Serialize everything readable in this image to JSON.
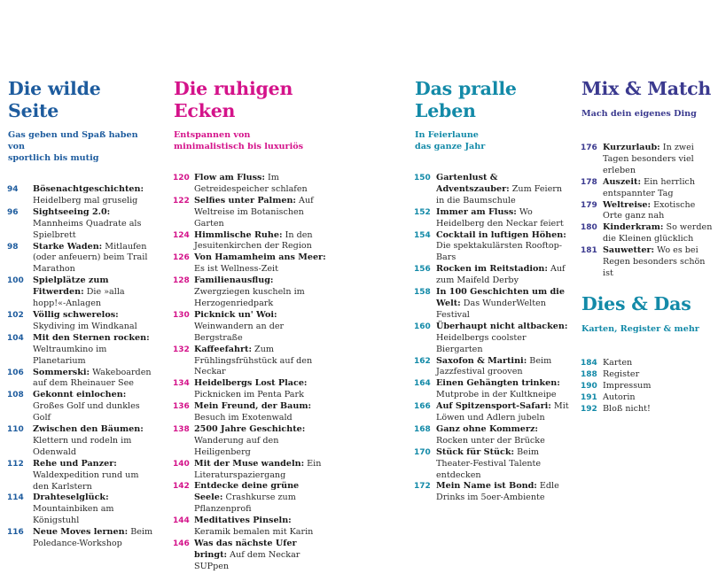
{
  "colors": {
    "blue": "#1e5c9e",
    "pink": "#d4138a",
    "teal": "#138aa8",
    "purple": "#3b3a8f"
  },
  "sections": [
    {
      "title_line1": "Die wilde",
      "title_line2": "Seite",
      "subtitle_line1": "Gas geben und Spaß haben von",
      "subtitle_line2": "sportlich bis mutig",
      "items": [
        {
          "page": "94",
          "title": "Bösenachtgeschichten:",
          "desc": "Heidelberg mal gruselig"
        },
        {
          "page": "96",
          "title": "Sightseeing 2.0:",
          "desc": "Mannheims Quadrate als Spielbrett"
        },
        {
          "page": "98",
          "title": "Starke Waden:",
          "desc": "Mitlaufen (oder anfeuern) beim Trail Marathon"
        },
        {
          "page": "100",
          "title": "Spielplätze zum Fitwerden:",
          "desc": "Die »alla hopp!«-Anlagen"
        },
        {
          "page": "102",
          "title": "Völlig schwerelos:",
          "desc": "Skydiving im Windkanal"
        },
        {
          "page": "104",
          "title": "Mit den Sternen rocken:",
          "desc": "Weltraumkino im Planetarium"
        },
        {
          "page": "106",
          "title": "Sommerski:",
          "desc": "Wakeboarden auf dem Rheinauer See"
        },
        {
          "page": "108",
          "title": "Gekonnt einlochen:",
          "desc": "Großes Golf und dunkles Golf"
        },
        {
          "page": "110",
          "title": "Zwischen den Bäumen:",
          "desc": "Klettern und rodeln im Odenwald"
        },
        {
          "page": "112",
          "title": "Rehe und Panzer:",
          "desc": "Waldexpedition rund um den Karlstern"
        },
        {
          "page": "114",
          "title": "Drahteselglück:",
          "desc": "Mountainbiken am Königstuhl"
        },
        {
          "page": "116",
          "title": "Neue Moves lernen:",
          "desc": "Beim Poledance-Workshop"
        }
      ]
    },
    {
      "title_line1": "Die ruhigen",
      "title_line2": "Ecken",
      "subtitle_line1": "Entspannen von",
      "subtitle_line2": "minimalistisch bis luxuriös",
      "items": [
        {
          "page": "120",
          "title": "Flow am Fluss:",
          "desc": "Im Getreidespeicher schlafen"
        },
        {
          "page": "122",
          "title": "Selfies unter Palmen:",
          "desc": "Auf Weltreise im Botanischen Garten"
        },
        {
          "page": "124",
          "title": "Himmlische Ruhe:",
          "desc": "In den Jesuitenkirchen der Region"
        },
        {
          "page": "126",
          "title": "Von Hamamheim ans Meer:",
          "desc": "Es ist Wellness-Zeit"
        },
        {
          "page": "128",
          "title": "Familienausflug:",
          "desc": "Zwergziegen kuscheln im Herzogenriedpark"
        },
        {
          "page": "130",
          "title": "Picknick un' Woi:",
          "desc": "Weinwandern an der Bergstraße"
        },
        {
          "page": "132",
          "title": "Kaffeefahrt:",
          "desc": "Zum Frühlingsfrühstück auf den Neckar"
        },
        {
          "page": "134",
          "title": "Heidelbergs Lost Place:",
          "desc": "Picknicken im Penta Park"
        },
        {
          "page": "136",
          "title": "Mein Freund, der Baum:",
          "desc": "Besuch im Exotenwald"
        },
        {
          "page": "138",
          "title": "2500 Jahre Geschichte:",
          "desc": "Wanderung auf den Heiligenberg"
        },
        {
          "page": "140",
          "title": "Mit der Muse wandeln:",
          "desc": "Ein Literaturspaziergang"
        },
        {
          "page": "142",
          "title": "Entdecke deine grüne Seele:",
          "desc": "Crashkurse zum Pflanzenprofi"
        },
        {
          "page": "144",
          "title": "Meditatives Pinseln:",
          "desc": "Keramik bemalen mit Karin"
        },
        {
          "page": "146",
          "title": "Was das nächste Ufer bringt:",
          "desc": "Auf dem Neckar SUPpen"
        }
      ]
    },
    {
      "title_line1": "Das pralle",
      "title_line2": "Leben",
      "subtitle_line1": "In Feierlaune",
      "subtitle_line2": "das ganze Jahr",
      "items": [
        {
          "page": "150",
          "title": "Gartenlust & Adventszauber:",
          "desc": "Zum Feiern in die Baumschule"
        },
        {
          "page": "152",
          "title": "Immer am Fluss:",
          "desc": "Wo Heidelberg den Neckar feiert"
        },
        {
          "page": "154",
          "title": "Cocktail in luftigen Höhen:",
          "desc": "Die spektakulärsten Rooftop-Bars"
        },
        {
          "page": "156",
          "title": "Rocken im Reitstadion:",
          "desc": "Auf zum Maifeld Derby"
        },
        {
          "page": "158",
          "title": "In 100 Geschichten um die Welt:",
          "desc": "Das WunderWelten Festival"
        },
        {
          "page": "160",
          "title": "Überhaupt nicht altbacken:",
          "desc": "Heidelbergs coolster Biergarten"
        },
        {
          "page": "162",
          "title": "Saxofon & Martini:",
          "desc": "Beim Jazzfestival grooven"
        },
        {
          "page": "164",
          "title": "Einen Gehängten trinken:",
          "desc": "Mutprobe in der Kultkneipe"
        },
        {
          "page": "166",
          "title": "Auf Spitzensport-Safari:",
          "desc": "Mit Löwen und Adlern jubeln"
        },
        {
          "page": "168",
          "title": "Ganz ohne Kommerz:",
          "desc": "Rocken unter der Brücke"
        },
        {
          "page": "170",
          "title": "Stück für Stück:",
          "desc": "Beim Theater-Festival Talente entdecken"
        },
        {
          "page": "172",
          "title": "Mein Name ist Bond:",
          "desc": "Edle Drinks im 5oer-Ambiente"
        }
      ]
    },
    {
      "title_line1": "Mix & Match",
      "subtitle_line1": "Mach dein eigenes Ding",
      "items": [
        {
          "page": "176",
          "title": "Kurzurlaub:",
          "desc": "In zwei Tagen besonders viel erleben"
        },
        {
          "page": "178",
          "title": "Auszeit:",
          "desc": "Ein herrlich entspannter Tag"
        },
        {
          "page": "179",
          "title": "Weltreise:",
          "desc": "Exotische Orte ganz nah"
        },
        {
          "page": "180",
          "title": "Kinderkram:",
          "desc": "So werden die Kleinen glücklich"
        },
        {
          "page": "181",
          "title": "Sauwetter:",
          "desc": "Wo es bei Regen besonders schön ist"
        }
      ]
    },
    {
      "title_line1": "Dies & Das",
      "subtitle_line1": "Karten, Register & mehr",
      "items": [
        {
          "page": "184",
          "title": "",
          "desc": "Karten"
        },
        {
          "page": "188",
          "title": "",
          "desc": "Register"
        },
        {
          "page": "190",
          "title": "",
          "desc": "Impressum"
        },
        {
          "page": "191",
          "title": "",
          "desc": "Autorin"
        },
        {
          "page": "192",
          "title": "",
          "desc": "Bloß nicht!"
        }
      ]
    }
  ]
}
